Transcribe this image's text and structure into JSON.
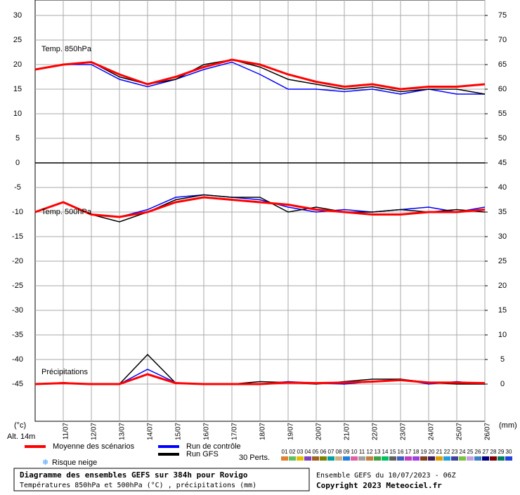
{
  "chart_data": [
    {
      "type": "line",
      "title": "Temp. 850hPa",
      "categories": [
        null,
        "11/07",
        "12/07",
        "13/07",
        "14/07",
        "15/07",
        "16/07",
        "17/07",
        "18/07",
        "19/07",
        "20/07",
        "21/07",
        "22/07",
        "23/07",
        "24/07",
        "25/07",
        "26/07"
      ],
      "ylim": [
        0,
        33.14
      ],
      "yticks": [
        5,
        10,
        15,
        20,
        25,
        30
      ],
      "y2lim": [
        45,
        78.14
      ],
      "y2ticks": [
        45,
        50,
        55,
        60,
        65,
        70,
        75
      ],
      "grid": true,
      "series": [
        {
          "name": "Moyenne des scénarios",
          "color": "#ff0000",
          "values": [
            19,
            20,
            20.5,
            18,
            16,
            17.5,
            19.5,
            21,
            20,
            18,
            16.5,
            15.5,
            16,
            15,
            15.5,
            15.5,
            16
          ]
        },
        {
          "name": "Run de contrôle",
          "color": "#0000ff",
          "values": [
            19,
            20,
            20,
            17,
            15.5,
            17,
            19,
            20.5,
            18,
            15,
            15,
            14.5,
            15,
            14,
            15,
            14,
            14
          ]
        },
        {
          "name": "Run GFS",
          "color": "#000000",
          "values": [
            19,
            20,
            20.5,
            17.5,
            16,
            17,
            20,
            21,
            19.5,
            17,
            16,
            15,
            15.5,
            14.5,
            15,
            15,
            14
          ]
        }
      ]
    },
    {
      "type": "line",
      "title": "Temp. 500hPa",
      "annotation": "Précipitations",
      "ylim": [
        -52.57,
        0
      ],
      "yticks": [
        0,
        -5,
        -10,
        -15,
        -20,
        -25,
        -30,
        -35,
        -40,
        -45
      ],
      "y2lim": [
        -7.57,
        45
      ],
      "y2ticks": [
        0,
        5,
        10,
        15,
        20,
        25,
        30,
        35,
        40
      ],
      "grid": true,
      "series": [
        {
          "name": "Moyenne des scénarios",
          "color": "#ff0000",
          "values": [
            -10,
            -8,
            -10.5,
            -11,
            -10,
            -8,
            -7,
            -7.5,
            -8,
            -8.5,
            -9.5,
            -10,
            -10.5,
            -10.5,
            -10,
            -10,
            -9.5
          ]
        },
        {
          "name": "Run de contrôle",
          "color": "#0000ff",
          "values": [
            -10,
            -8,
            -10.5,
            -11,
            -9.5,
            -7,
            -6.5,
            -7,
            -7.5,
            -9,
            -10,
            -9.5,
            -10,
            -9.5,
            -9,
            -10,
            -9
          ]
        },
        {
          "name": "Run GFS",
          "color": "#000000",
          "values": [
            -10,
            -8,
            -10.5,
            -12,
            -10,
            -7.5,
            -6.5,
            -7,
            -7,
            -10,
            -9,
            -10,
            -10,
            -9.5,
            -10,
            -9.5,
            -10
          ]
        },
        {
          "name": "Moyenne des scénarios",
          "color": "#ff0000",
          "axis": "y2",
          "values": [
            0,
            0.2,
            0,
            0,
            2,
            0.2,
            0,
            0,
            0,
            0.3,
            0.2,
            0.3,
            0.5,
            0.8,
            0.3,
            0.3,
            0.2
          ]
        },
        {
          "name": "Run de contrôle",
          "color": "#0000ff",
          "axis": "y2",
          "values": [
            0,
            0.2,
            0,
            0,
            3,
            0.3,
            0,
            0,
            0,
            0.5,
            0.2,
            0,
            0.5,
            1,
            0,
            0.5,
            0
          ]
        },
        {
          "name": "Run GFS",
          "color": "#000000",
          "axis": "y2",
          "values": [
            0,
            0.3,
            0,
            0,
            6,
            0.2,
            0,
            0,
            0.5,
            0.3,
            0,
            0.5,
            1,
            1,
            0.3,
            0,
            0
          ]
        }
      ]
    }
  ],
  "labels": {
    "unit_left": "(°c)",
    "unit_right": "(mm)",
    "altitude": "Alt. 14m",
    "snow": "Risque neige"
  },
  "perturbations": {
    "label": "30 Perts.",
    "members": [
      {
        "name": "01",
        "color": "#e08030"
      },
      {
        "name": "02",
        "color": "#60c060"
      },
      {
        "name": "03",
        "color": "#e0c000"
      },
      {
        "name": "04",
        "color": "#8040c0"
      },
      {
        "name": "05",
        "color": "#a06020"
      },
      {
        "name": "06",
        "color": "#808000"
      },
      {
        "name": "07",
        "color": "#00a0a0"
      },
      {
        "name": "08",
        "color": "#d0b080"
      },
      {
        "name": "09",
        "color": "#2080e0"
      },
      {
        "name": "10",
        "color": "#e060a0"
      },
      {
        "name": "11",
        "color": "#a0a0a0"
      },
      {
        "name": "12",
        "color": "#c08040"
      },
      {
        "name": "13",
        "color": "#40a040"
      },
      {
        "name": "14",
        "color": "#00c060"
      },
      {
        "name": "15",
        "color": "#606060"
      },
      {
        "name": "16",
        "color": "#4060c0"
      },
      {
        "name": "17",
        "color": "#c040c0"
      },
      {
        "name": "18",
        "color": "#a040e0"
      },
      {
        "name": "19",
        "color": "#804020"
      },
      {
        "name": "20",
        "color": "#402060"
      },
      {
        "name": "21",
        "color": "#e0a000"
      },
      {
        "name": "22",
        "color": "#20a0e0"
      },
      {
        "name": "23",
        "color": "#4040a0"
      },
      {
        "name": "24",
        "color": "#80c040"
      },
      {
        "name": "25",
        "color": "#c0a0e0"
      },
      {
        "name": "26",
        "color": "#4080c0"
      },
      {
        "name": "27",
        "color": "#000080"
      },
      {
        "name": "28",
        "color": "#800000"
      },
      {
        "name": "29",
        "color": "#008060"
      },
      {
        "name": "30",
        "color": "#2040e0"
      }
    ]
  },
  "footer": {
    "title": "Diagramme des ensembles GEFS sur 384h pour Rovigo",
    "subtitle": "Températures 850hPa et 500hPa (°C) , précipitations (mm)",
    "run": "Ensemble GEFS du 10/07/2023 - 06Z",
    "copyright": "Copyright 2023 Meteociel.fr"
  }
}
